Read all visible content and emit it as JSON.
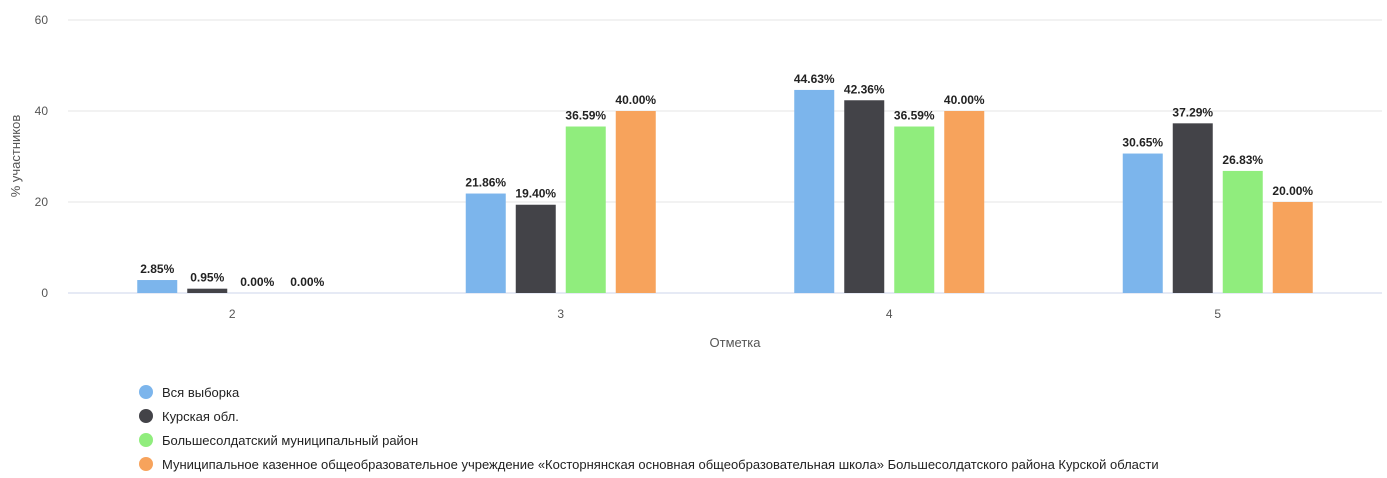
{
  "chart_data": {
    "type": "bar",
    "title": "",
    "xlabel": "Отметка",
    "ylabel": "% участников",
    "ylim": [
      0,
      60
    ],
    "yticks": [
      0,
      20,
      40,
      60
    ],
    "grid": true,
    "legend_position": "bottom-left",
    "categories": [
      "2",
      "3",
      "4",
      "5"
    ],
    "series": [
      {
        "name": "Вся выборка",
        "color": "#7cb5ec",
        "values": [
          2.85,
          21.86,
          44.63,
          30.65
        ],
        "labels": [
          "2.85%",
          "21.86%",
          "44.63%",
          "30.65%"
        ]
      },
      {
        "name": "Курская обл.",
        "color": "#434348",
        "values": [
          0.95,
          19.4,
          42.36,
          37.29
        ],
        "labels": [
          "0.95%",
          "19.40%",
          "42.36%",
          "37.29%"
        ]
      },
      {
        "name": "Большесолдатский муниципальный район",
        "color": "#90ed7d",
        "values": [
          0.0,
          36.59,
          36.59,
          26.83
        ],
        "labels": [
          "0.00%",
          "36.59%",
          "36.59%",
          "26.83%"
        ]
      },
      {
        "name": "Муниципальное казенное общеобразовательное учреждение «Косторнянская основная общеобразовательная школа» Большесолдатского района Курской области",
        "color": "#f7a35c",
        "values": [
          0.0,
          40.0,
          40.0,
          20.0
        ],
        "labels": [
          "0.00%",
          "40.00%",
          "40.00%",
          "20.00%"
        ]
      }
    ]
  }
}
